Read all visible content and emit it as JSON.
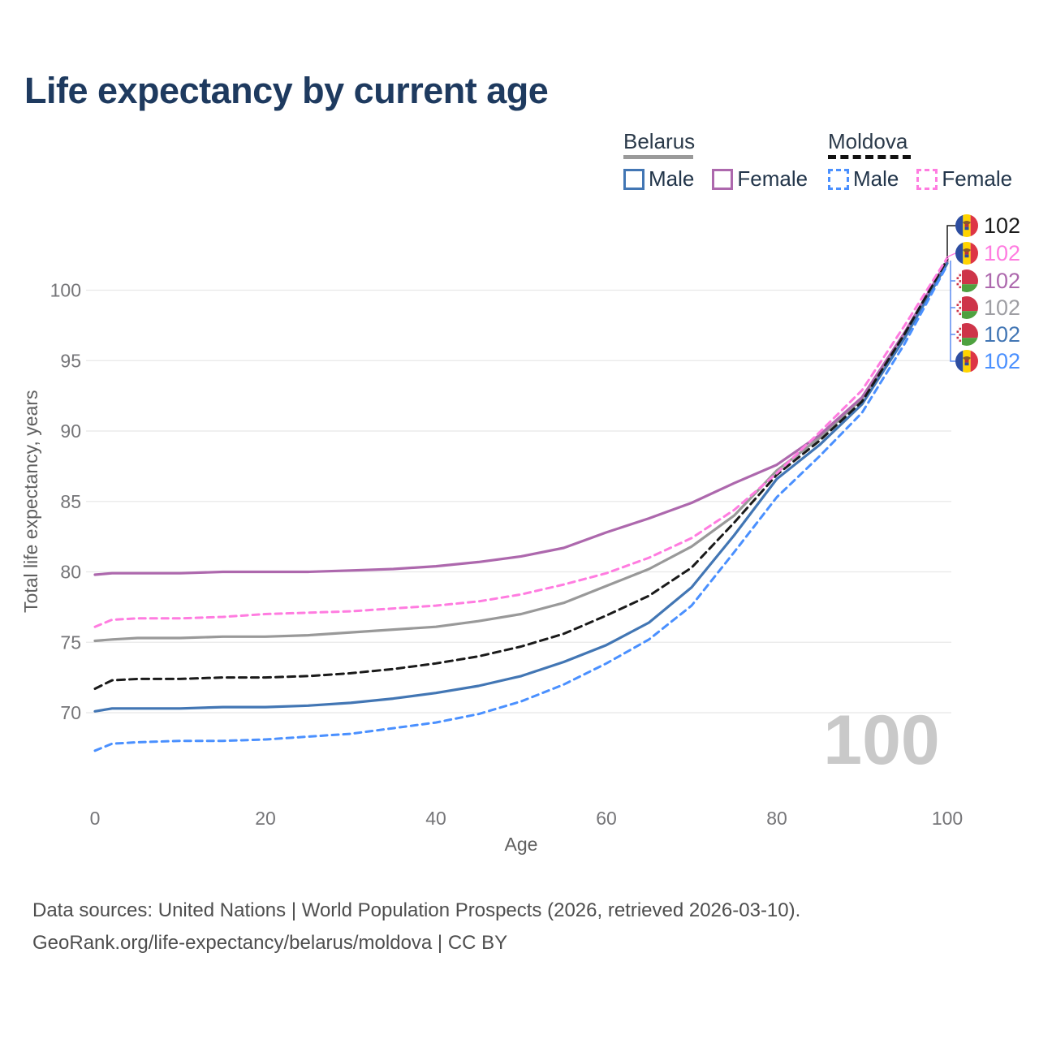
{
  "title": "Life expectancy by current age",
  "legend": {
    "groups": [
      {
        "name": "Belarus",
        "line_style": "solid",
        "line_color": "#9a9a9a",
        "items": [
          {
            "label": "Male",
            "color": "#4276b4",
            "dashed": false
          },
          {
            "label": "Female",
            "color": "#ad68ad",
            "dashed": false
          }
        ]
      },
      {
        "name": "Moldova",
        "line_style": "dashed",
        "line_color": "#111111",
        "items": [
          {
            "label": "Male",
            "color": "#4a90ff",
            "dashed": true
          },
          {
            "label": "Female",
            "color": "#ff7ce0",
            "dashed": true
          }
        ]
      }
    ]
  },
  "chart_data": {
    "type": "line",
    "title": "Life expectancy by current age",
    "xlabel": "Age",
    "ylabel": "Total life expectancy, years",
    "xlim": [
      0,
      100
    ],
    "ylim": [
      66,
      103
    ],
    "xticks": [
      0,
      20,
      40,
      60,
      80,
      100
    ],
    "yticks": [
      70,
      75,
      80,
      85,
      90,
      95,
      100
    ],
    "grid": "horizontal",
    "legend_position": "top-right",
    "x": [
      0,
      2,
      5,
      10,
      15,
      20,
      25,
      30,
      35,
      40,
      45,
      50,
      55,
      60,
      65,
      70,
      75,
      80,
      85,
      90,
      95,
      100
    ],
    "series": [
      {
        "name": "Belarus",
        "country": "Belarus",
        "sex": "both",
        "color": "#999999",
        "dash": null,
        "width": 3.2,
        "values": [
          75.1,
          75.2,
          75.3,
          75.3,
          75.4,
          75.4,
          75.5,
          75.7,
          75.9,
          76.1,
          76.5,
          77.0,
          77.8,
          79.0,
          80.2,
          81.8,
          84.0,
          87.2,
          89.5,
          92.3,
          96.8,
          102.0
        ],
        "end_label": "102"
      },
      {
        "name": "Belarus Female",
        "country": "Belarus",
        "sex": "female",
        "color": "#ad68ad",
        "dash": null,
        "width": 3.2,
        "values": [
          79.8,
          79.9,
          79.9,
          79.9,
          80.0,
          80.0,
          80.0,
          80.1,
          80.2,
          80.4,
          80.7,
          81.1,
          81.7,
          82.8,
          83.8,
          84.9,
          86.3,
          87.6,
          89.7,
          92.4,
          97.0,
          102.1
        ],
        "end_label": "102"
      },
      {
        "name": "Belarus Male",
        "country": "Belarus",
        "sex": "male",
        "color": "#4276b4",
        "dash": null,
        "width": 3.2,
        "values": [
          70.1,
          70.3,
          70.3,
          70.3,
          70.4,
          70.4,
          70.5,
          70.7,
          71.0,
          71.4,
          71.9,
          72.6,
          73.6,
          74.8,
          76.4,
          78.9,
          82.6,
          86.6,
          89.0,
          91.9,
          96.6,
          101.9
        ],
        "end_label": "102"
      },
      {
        "name": "Moldova",
        "country": "Moldova",
        "sex": "both",
        "color": "#1a1a1a",
        "dash": "9 6",
        "width": 3,
        "values": [
          71.7,
          72.3,
          72.4,
          72.4,
          72.5,
          72.5,
          72.6,
          72.8,
          73.1,
          73.5,
          74.0,
          74.7,
          75.6,
          76.9,
          78.3,
          80.3,
          83.5,
          86.9,
          89.3,
          92.1,
          96.9,
          102.2
        ],
        "end_label": "102"
      },
      {
        "name": "Moldova Male",
        "country": "Moldova",
        "sex": "male",
        "color": "#4a90ff",
        "dash": "8 6",
        "width": 3,
        "values": [
          67.3,
          67.8,
          67.9,
          68.0,
          68.0,
          68.1,
          68.3,
          68.5,
          68.9,
          69.3,
          69.9,
          70.8,
          72.0,
          73.5,
          75.2,
          77.6,
          81.4,
          85.3,
          88.2,
          91.3,
          96.2,
          101.8
        ],
        "end_label": "102"
      },
      {
        "name": "Moldova Female",
        "country": "Moldova",
        "sex": "female",
        "color": "#ff7ce0",
        "dash": "8 6",
        "width": 3,
        "values": [
          76.1,
          76.6,
          76.7,
          76.7,
          76.8,
          77.0,
          77.1,
          77.2,
          77.4,
          77.6,
          77.9,
          78.4,
          79.1,
          79.9,
          81.0,
          82.4,
          84.4,
          87.0,
          89.9,
          92.9,
          97.5,
          102.3
        ],
        "end_label": "102"
      }
    ]
  },
  "right_labels": {
    "items": [
      {
        "flag": "moldova",
        "value": "102",
        "color": "#1a1a1a",
        "y": 278
      },
      {
        "flag": "moldova",
        "value": "102",
        "color": "#ff7ce0",
        "y": 312
      },
      {
        "flag": "belarus",
        "value": "102",
        "color": "#ad68ad",
        "y": 346
      },
      {
        "flag": "belarus",
        "value": "102",
        "color": "#9e9ea3",
        "y": 379
      },
      {
        "flag": "belarus",
        "value": "102",
        "color": "#4276b4",
        "y": 412
      },
      {
        "flag": "moldova",
        "value": "102",
        "color": "#4a90ff",
        "y": 445
      }
    ]
  },
  "watermark": "100",
  "axis_colors": {
    "tick": "#757578",
    "axis_title": "#5f5f5f",
    "grid": "#e8e8e8"
  },
  "footer": {
    "line1": "Data sources: United Nations | World Population Prospects (2026, retrieved 2026-03-10).",
    "line2": "GeoRank.org/life-expectancy/belarus/moldova | CC BY"
  }
}
